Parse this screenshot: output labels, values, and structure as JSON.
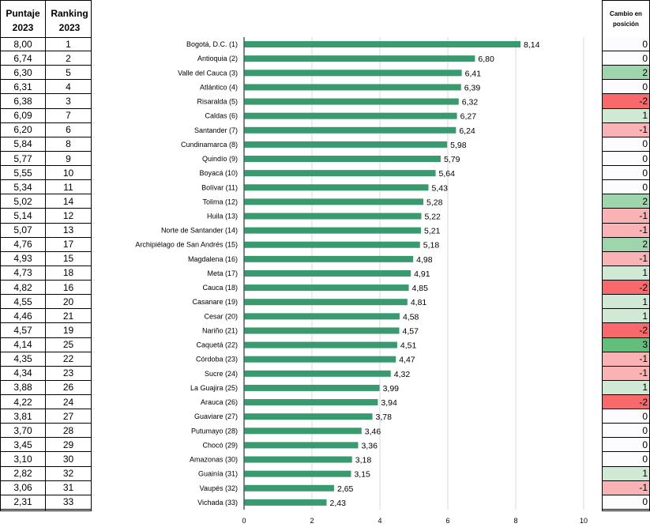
{
  "left_table": {
    "headers": [
      "Puntaje 2023",
      "Ranking 2023"
    ],
    "puntaje": [
      "8,00",
      "6,74",
      "6,30",
      "6,31",
      "6,38",
      "6,09",
      "6,20",
      "5,84",
      "5,77",
      "5,55",
      "5,34",
      "5,02",
      "5,14",
      "5,07",
      "4,76",
      "4,93",
      "4,73",
      "4,82",
      "4,55",
      "4,46",
      "4,57",
      "4,14",
      "4,35",
      "4,34",
      "3,88",
      "4,22",
      "3,81",
      "3,70",
      "3,45",
      "3,10",
      "2,82",
      "3,06",
      "2,31"
    ],
    "ranking": [
      "1",
      "2",
      "5",
      "4",
      "3",
      "7",
      "6",
      "8",
      "9",
      "10",
      "11",
      "14",
      "12",
      "13",
      "17",
      "15",
      "18",
      "16",
      "20",
      "21",
      "19",
      "25",
      "22",
      "23",
      "26",
      "24",
      "27",
      "28",
      "29",
      "30",
      "32",
      "31",
      "33"
    ]
  },
  "right_table": {
    "header": "Cambio en posición",
    "values": [
      "0",
      "0",
      "2",
      "0",
      "-2",
      "1",
      "-1",
      "0",
      "0",
      "0",
      "0",
      "2",
      "-1",
      "-1",
      "2",
      "-1",
      "1",
      "-2",
      "1",
      "1",
      "-2",
      "3",
      "-1",
      "-1",
      "1",
      "-2",
      "0",
      "0",
      "0",
      "0",
      "1",
      "-1",
      "0"
    ],
    "colors": {
      "3": "#63be7b",
      "2": "#9fd5ac",
      "1": "#cfe9d5",
      "0": "#fcfcff",
      "-1": "#f9b3b5",
      "-2": "#f8696b"
    }
  },
  "chart_data": {
    "type": "bar",
    "orientation": "horizontal",
    "categories": [
      "Bogotá, D.C. (1)",
      "Antioquia (2)",
      "Valle del Cauca (3)",
      "Atlántico (4)",
      "Risaralda (5)",
      "Caldas (6)",
      "Santander (7)",
      "Cundinamarca (8)",
      "Quindío (9)",
      "Boyacá (10)",
      "Bolívar (11)",
      "Tolima (12)",
      "Huila (13)",
      "Norte de Santander (14)",
      "Archipiélago de San Andrés (15)",
      "Magdalena (16)",
      "Meta (17)",
      "Cauca (18)",
      "Casanare (19)",
      "Cesar (20)",
      "Nariño (21)",
      "Caquetá (22)",
      "Córdoba (23)",
      "Sucre (24)",
      "La Guajira (25)",
      "Arauca (26)",
      "Guaviare (27)",
      "Putumayo (28)",
      "Chocó (29)",
      "Amazonas (30)",
      "Guainía (31)",
      "Vaupés (32)",
      "Vichada (33)"
    ],
    "values": [
      8.14,
      6.8,
      6.41,
      6.39,
      6.32,
      6.27,
      6.24,
      5.98,
      5.79,
      5.64,
      5.43,
      5.28,
      5.22,
      5.21,
      5.18,
      4.98,
      4.91,
      4.85,
      4.81,
      4.58,
      4.57,
      4.51,
      4.47,
      4.32,
      3.99,
      3.94,
      3.78,
      3.46,
      3.36,
      3.18,
      3.15,
      2.65,
      2.43
    ],
    "value_labels": [
      "8,14",
      "6,80",
      "6,41",
      "6,39",
      "6,32",
      "6,27",
      "6,24",
      "5,98",
      "5,79",
      "5,64",
      "5,43",
      "5,28",
      "5,22",
      "5,21",
      "5,18",
      "4,98",
      "4,91",
      "4,85",
      "4,81",
      "4,58",
      "4,57",
      "4,51",
      "4,47",
      "4,32",
      "3,99",
      "3,94",
      "3,78",
      "3,46",
      "3,36",
      "3,18",
      "3,15",
      "2,65",
      "2,43"
    ],
    "xlim": [
      0,
      10
    ],
    "xticks": [
      "0",
      "2",
      "4",
      "6",
      "8",
      "10"
    ],
    "grid": true,
    "bar_color": "#389a6e"
  }
}
